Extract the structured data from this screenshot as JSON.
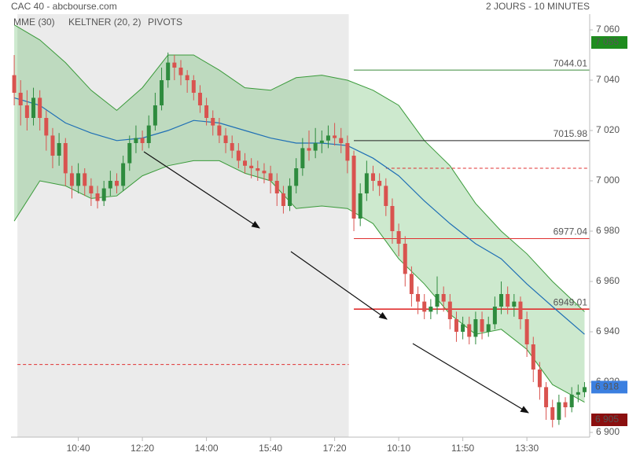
{
  "chart_data": {
    "type": "candlestick",
    "title": "CAC 40 - abcbourse.com",
    "subtitle": "2 JOURS - 10 MINUTES",
    "xlim": [
      -0.5,
      89.8
    ],
    "ylim": [
      6900,
      7060
    ],
    "xticks": [
      {
        "value": 10,
        "label": "10:40"
      },
      {
        "value": 20,
        "label": "12:20"
      },
      {
        "value": 30,
        "label": "14:00"
      },
      {
        "value": 40,
        "label": "15:40"
      },
      {
        "value": 50,
        "label": "17:20"
      },
      {
        "value": 60,
        "label": "10:10"
      },
      {
        "value": 70,
        "label": "11:50"
      },
      {
        "value": 80,
        "label": "13:30"
      }
    ],
    "yticks": [
      {
        "value": 6900,
        "label": "6 900"
      },
      {
        "value": 6920,
        "label": "6 920"
      },
      {
        "value": 6940,
        "label": "6 940"
      },
      {
        "value": 6960,
        "label": "6 960"
      },
      {
        "value": 6980,
        "label": "6 980"
      },
      {
        "value": 7000,
        "label": "7 000"
      },
      {
        "value": 7020,
        "label": "7 020"
      },
      {
        "value": 7040,
        "label": "7 040"
      },
      {
        "value": 7060,
        "label": "7 060"
      }
    ],
    "up_color": "#2e8b3e",
    "down_color": "#d9534f",
    "session_shade": [
      0.5,
      52.2
    ],
    "open": [
      7042,
      7035,
      7030,
      7025,
      7033,
      7025,
      7018,
      7010,
      7015,
      7003,
      6998,
      7003,
      6998,
      6995,
      6992,
      6997,
      7000,
      6998,
      7007,
      7015,
      7017,
      7015,
      7022,
      7030,
      7040,
      7047,
      7045,
      7042,
      7040,
      7035,
      7030,
      7025,
      7022,
      7018,
      7015,
      7012,
      7008,
      7006,
      7005,
      7004,
      7003,
      7000,
      6995,
      6990,
      6998,
      7005,
      7013,
      7012,
      7015,
      7016,
      7018,
      7017,
      7015,
      7010,
      6985,
      6995,
      7003,
      7000,
      6998,
      6990,
      6980,
      6975,
      6963,
      6955,
      6952,
      6948,
      6950,
      6955,
      6952,
      6945,
      6940,
      6943,
      6938,
      6945,
      6940,
      6943,
      6950,
      6955,
      6950,
      6952,
      6945,
      6935,
      6925,
      6918,
      6910,
      6905,
      6912,
      6910,
      6915,
      6916
    ],
    "high": [
      7050,
      7040,
      7036,
      7037,
      7036,
      7028,
      7021,
      7019,
      7017,
      7006,
      7007,
      7005,
      7001,
      6998,
      7000,
      7004,
      7003,
      7010,
      7018,
      7022,
      7020,
      7026,
      7035,
      7045,
      7051,
      7050,
      7048,
      7044,
      7042,
      7038,
      7033,
      7028,
      7025,
      7021,
      7018,
      7015,
      7011,
      7009,
      7008,
      7007,
      7006,
      7003,
      6998,
      7001,
      7009,
      7017,
      7020,
      7021,
      7020,
      7022,
      7023,
      7021,
      7018,
      7012,
      6999,
      7008,
      7006,
      7003,
      7001,
      6993,
      6983,
      6978,
      6966,
      6958,
      6955,
      6953,
      6962,
      6958,
      6955,
      6948,
      6946,
      6946,
      6948,
      6948,
      6946,
      6954,
      6960,
      6958,
      6955,
      6954,
      6948,
      6938,
      6928,
      6920,
      6913,
      6915,
      6914,
      6918,
      6919,
      6920
    ],
    "low": [
      7030,
      7022,
      7020,
      7022,
      7020,
      7012,
      7005,
      7006,
      6998,
      6993,
      6995,
      6994,
      6990,
      6989,
      6990,
      6994,
      6995,
      6996,
      7004,
      7011,
      7012,
      7013,
      7020,
      7028,
      7037,
      7040,
      7038,
      7035,
      7032,
      7027,
      7022,
      7018,
      7015,
      7011,
      7009,
      7005,
      7003,
      7001,
      7000,
      6999,
      6995,
      6990,
      6987,
      6988,
      6995,
      7002,
      7008,
      7009,
      7011,
      7013,
      7014,
      7011,
      7003,
      6980,
      6982,
      6992,
      6996,
      6994,
      6986,
      6975,
      6970,
      6958,
      6950,
      6947,
      6945,
      6945,
      6947,
      6948,
      6941,
      6936,
      6937,
      6935,
      6935,
      6937,
      6938,
      6941,
      6947,
      6947,
      6946,
      6941,
      6930,
      6920,
      6913,
      6905,
      6902,
      6903,
      6906,
      6908,
      6912,
      6914
    ],
    "close": [
      7035,
      7030,
      7025,
      7033,
      7025,
      7018,
      7010,
      7015,
      7003,
      6998,
      7003,
      6998,
      6995,
      6992,
      6997,
      7000,
      6998,
      7007,
      7015,
      7017,
      7015,
      7022,
      7030,
      7040,
      7047,
      7045,
      7042,
      7040,
      7035,
      7030,
      7025,
      7022,
      7018,
      7015,
      7012,
      7008,
      7006,
      7005,
      7004,
      7003,
      7000,
      6995,
      6990,
      6998,
      7005,
      7013,
      7012,
      7015,
      7016,
      7018,
      7017,
      7015,
      7008,
      6985,
      6995,
      7003,
      7000,
      6998,
      6990,
      6980,
      6975,
      6963,
      6955,
      6952,
      6948,
      6950,
      6955,
      6952,
      6945,
      6940,
      6943,
      6938,
      6945,
      6940,
      6943,
      6950,
      6955,
      6950,
      6952,
      6945,
      6935,
      6925,
      6918,
      6910,
      6905,
      6912,
      6910,
      6915,
      6916,
      6918
    ],
    "series": [
      {
        "name": "MME (30)",
        "color": "#1f6fb5",
        "x": [
          0,
          4,
          8,
          12,
          16,
          20,
          24,
          28,
          32,
          36,
          40,
          44,
          48,
          52,
          56,
          60,
          64,
          68,
          72,
          76,
          80,
          84,
          89
        ],
        "values": [
          7033,
          7030,
          7023,
          7019,
          7016,
          7017,
          7020,
          7024,
          7023,
          7020,
          7017,
          7015,
          7015,
          7014,
          7009,
          7002,
          6992,
          6983,
          6975,
          6969,
          6959,
          6950,
          6939
        ]
      },
      {
        "name": "KELTNER (20, 2)",
        "color": "#3a9a3a",
        "x": [
          0,
          4,
          8,
          12,
          16,
          20,
          24,
          28,
          32,
          36,
          40,
          44,
          48,
          52,
          56,
          60,
          64,
          68,
          72,
          76,
          80,
          84,
          89
        ],
        "upper": [
          7062,
          7056,
          7047,
          7036,
          7028,
          7037,
          7050,
          7050,
          7044,
          7037,
          7036,
          7041,
          7042,
          7040,
          7036,
          7030,
          7016,
          7006,
          6991,
          6980,
          6971,
          6960,
          6948
        ],
        "lower": [
          6984,
          7000,
          6998,
          6993,
          6994,
          7002,
          7006,
          7008,
          7008,
          7003,
          7000,
          6989,
          6990,
          6989,
          6983,
          6969,
          6959,
          6947,
          6939,
          6941,
          6933,
          6919,
          6912
        ]
      }
    ],
    "pivots": {
      "name": "PIVOTS",
      "color": "#666",
      "levels": [
        {
          "value": 7044.01,
          "color": "#3a8a3a",
          "x": [
            53,
            89.8
          ]
        },
        {
          "value": 7015.98,
          "color": "#222222",
          "x": [
            53,
            89.8
          ]
        },
        {
          "value": 6977.04,
          "color": "#e03030",
          "x": [
            53,
            89.8
          ]
        },
        {
          "value": 6949.01,
          "color": "#e03030",
          "x": [
            53,
            89.8
          ]
        }
      ],
      "dashed": [
        {
          "value": 7005,
          "color": "#e03030",
          "x": [
            58,
            89.8
          ]
        },
        {
          "value": 6927,
          "color": "#e03030",
          "x": [
            0.5,
            52.2
          ]
        }
      ]
    },
    "price_badges": [
      {
        "value": 7055,
        "label": "7 055",
        "color": "#1e8c1e"
      },
      {
        "value": 6918,
        "label": "6 918",
        "color": "#3b7fe0"
      },
      {
        "value": 6905,
        "label": "6 905",
        "color": "#8b0f0f"
      }
    ]
  }
}
